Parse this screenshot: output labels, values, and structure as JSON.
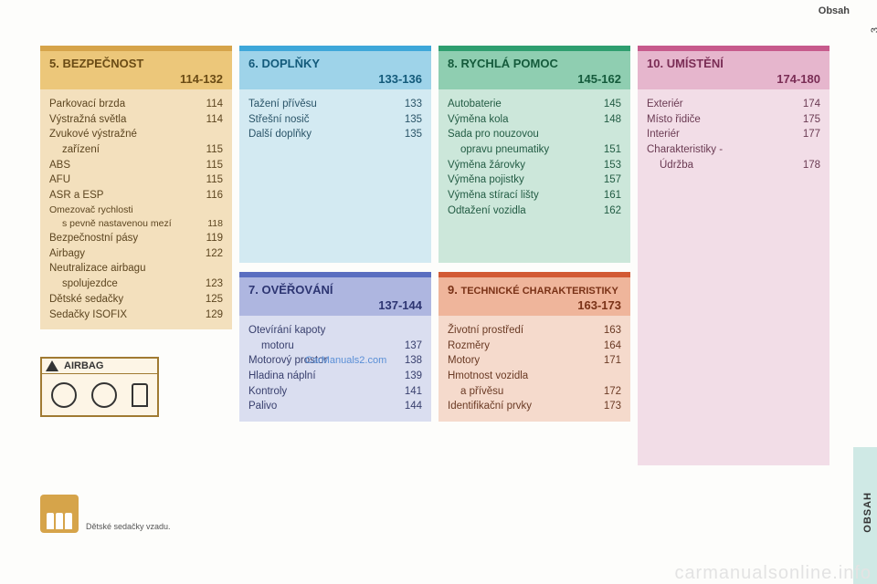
{
  "header": {
    "label": "Obsah"
  },
  "page_number": "3",
  "side_tab": "OBSAH",
  "watermark_main": "carmanualsonline.info",
  "watermark_small": "CarManuals2.com",
  "sections": {
    "s5": {
      "num": "5.",
      "title": "BEZPEČNOST",
      "range": "114-132",
      "items": [
        {
          "label": "Parkovací brzda",
          "page": "114"
        },
        {
          "label": "Výstražná světla",
          "page": "114"
        },
        {
          "label": "Zvukové výstražné",
          "page": ""
        },
        {
          "label": "zařízení",
          "page": "115",
          "indent": true
        },
        {
          "label": "ABS",
          "page": "115"
        },
        {
          "label": "AFU",
          "page": "115"
        },
        {
          "label": "ASR a ESP",
          "page": "116"
        },
        {
          "label": "Omezovač rychlosti",
          "page": "",
          "small": true
        },
        {
          "label": "s pevně nastavenou mezí",
          "page": "118",
          "indent": true,
          "small": true
        },
        {
          "label": "Bezpečnostní pásy",
          "page": "119"
        },
        {
          "label": "Airbagy",
          "page": "122"
        },
        {
          "label": "Neutralizace airbagu",
          "page": ""
        },
        {
          "label": "spolujezdce",
          "page": "123",
          "indent": true
        },
        {
          "label": "Dětské sedačky",
          "page": "125"
        },
        {
          "label": "Sedačky ISOFIX",
          "page": "129"
        }
      ]
    },
    "s6": {
      "num": "6.",
      "title": "DOPLŇKY",
      "range": "133-136",
      "items": [
        {
          "label": "Tažení přívěsu",
          "page": "133"
        },
        {
          "label": "Střešní nosič",
          "page": "135"
        },
        {
          "label": "Další doplňky",
          "page": "135"
        }
      ]
    },
    "s7": {
      "num": "7.",
      "title": "OVĚŘOVÁNÍ",
      "range": "137-144",
      "items": [
        {
          "label": "Otevírání kapoty",
          "page": ""
        },
        {
          "label": "motoru",
          "page": "137",
          "indent": true
        },
        {
          "label": "Motorový prostor",
          "page": "138"
        },
        {
          "label": "Hladina náplní",
          "page": "139"
        },
        {
          "label": "Kontroly",
          "page": "141"
        },
        {
          "label": "Palivo",
          "page": "144"
        }
      ]
    },
    "s8": {
      "num": "8.",
      "title": "RYCHLÁ POMOC",
      "range": "145-162",
      "items": [
        {
          "label": "Autobaterie",
          "page": "145"
        },
        {
          "label": "Výměna kola",
          "page": "148"
        },
        {
          "label": "Sada pro nouzovou",
          "page": ""
        },
        {
          "label": "opravu pneumatiky",
          "page": "151",
          "indent": true
        },
        {
          "label": "Výměna žárovky",
          "page": "153"
        },
        {
          "label": "Výměna pojistky",
          "page": "157"
        },
        {
          "label": "Výměna stírací lišty",
          "page": "161"
        },
        {
          "label": "Odtažení vozidla",
          "page": "162"
        }
      ]
    },
    "s9": {
      "num": "9.",
      "title": "TECHNICKÉ CHARAKTERISTIKY",
      "range": "163-173",
      "title_small": true,
      "items": [
        {
          "label": "Životní prostředí",
          "page": "163"
        },
        {
          "label": "Rozměry",
          "page": "164"
        },
        {
          "label": "Motory",
          "page": "171"
        },
        {
          "label": "Hmotnost vozidla",
          "page": ""
        },
        {
          "label": "a přívěsu",
          "page": "172",
          "indent": true
        },
        {
          "label": "Identifikační prvky",
          "page": "173"
        }
      ]
    },
    "s10": {
      "num": "10.",
      "title": "UMÍSTĚNÍ",
      "range": "174-180",
      "items": [
        {
          "label": "Exteriér",
          "page": "174"
        },
        {
          "label": "Místo řidiče",
          "page": "175"
        },
        {
          "label": "Interiér",
          "page": "177"
        },
        {
          "label": "Charakteristiky -",
          "page": ""
        },
        {
          "label": "Údržba",
          "page": "178",
          "indent": true
        }
      ]
    }
  },
  "airbag_label": "AIRBAG",
  "seats_caption": "Dětské sedačky vzadu."
}
